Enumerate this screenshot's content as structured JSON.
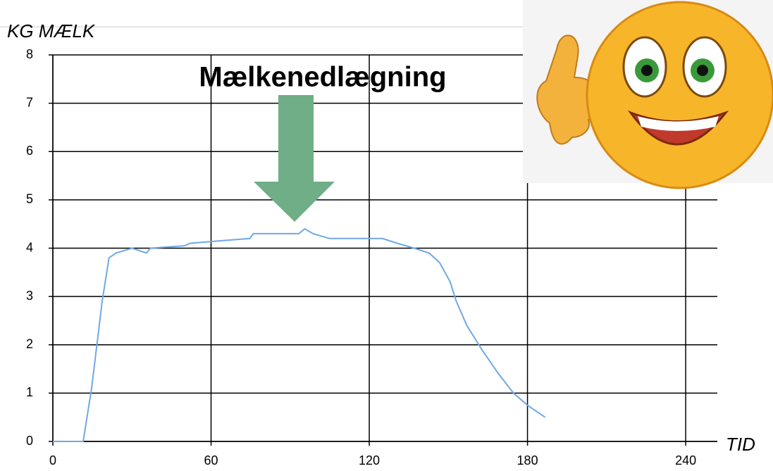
{
  "chart_data": {
    "type": "line",
    "title": "Mælkenedlægning",
    "y_label": "KG MÆLK",
    "x_label": "TID",
    "x": [
      0,
      11.5,
      14.7,
      18.7,
      21.3,
      24,
      30,
      35.5,
      37,
      50,
      52,
      62.7,
      74.7,
      76,
      93.3,
      95.5,
      98.7,
      105,
      125,
      130.7,
      137,
      142.7,
      146.7,
      150.7,
      153,
      157,
      162.7,
      169,
      174.7,
      180,
      186.7
    ],
    "series": [
      {
        "name": "KG MÆLK",
        "color": "#6fa8e6",
        "values": [
          0,
          0,
          1.1,
          2.9,
          3.8,
          3.9,
          4.0,
          3.9,
          4.0,
          4.05,
          4.1,
          4.15,
          4.2,
          4.3,
          4.3,
          4.4,
          4.3,
          4.2,
          4.2,
          4.1,
          4.0,
          3.9,
          3.7,
          3.3,
          2.9,
          2.4,
          1.9,
          1.4,
          1.0,
          0.75,
          0.5
        ]
      }
    ],
    "xlim": [
      0,
      252
    ],
    "xticks": [
      0,
      60,
      120,
      180,
      240
    ],
    "ylim": [
      0,
      8
    ],
    "yticks": [
      0,
      1,
      2,
      3,
      4,
      5,
      6,
      7,
      8
    ],
    "grid": true
  }
}
